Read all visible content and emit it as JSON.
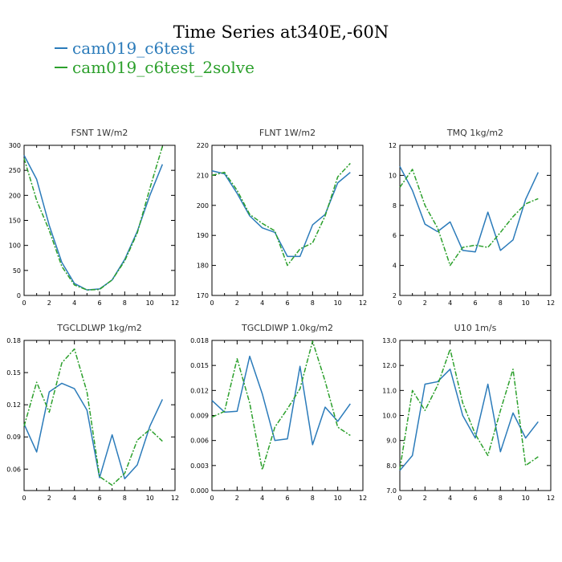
{
  "title": "Time Series at340E,-60N",
  "legend": [
    {
      "label": "cam019_c6test",
      "color": "#2b7bba"
    },
    {
      "label": "cam019_c6test_2solve",
      "color": "#2ca02c"
    }
  ],
  "chart_data": [
    {
      "type": "line",
      "title": "FSNT  1W/m2",
      "x": [
        0,
        1,
        2,
        3,
        4,
        5,
        6,
        7,
        8,
        9,
        10,
        11
      ],
      "xlim": [
        0,
        12
      ],
      "xticks": [
        0,
        2,
        4,
        6,
        8,
        10,
        12
      ],
      "ylim": [
        0,
        300
      ],
      "yticks": [
        "0",
        "50",
        "100",
        "150",
        "200",
        "250",
        "300"
      ],
      "series": [
        {
          "name": "cam019_c6test",
          "values": [
            280,
            232,
            140,
            66,
            24,
            11,
            13,
            31,
            72,
            128,
            200,
            262
          ]
        },
        {
          "name": "cam019_c6test_2solve",
          "values": [
            274,
            190,
            130,
            58,
            21,
            11,
            12,
            31,
            69,
            125,
            214,
            298
          ]
        }
      ]
    },
    {
      "type": "line",
      "title": "FLNT  1W/m2",
      "x": [
        0,
        1,
        2,
        3,
        4,
        5,
        6,
        7,
        8,
        9,
        10,
        11
      ],
      "xlim": [
        0,
        12
      ],
      "xticks": [
        0,
        2,
        4,
        6,
        8,
        10,
        12
      ],
      "ylim": [
        170,
        220
      ],
      "yticks": [
        "170",
        "180",
        "190",
        "200",
        "210",
        "220"
      ],
      "series": [
        {
          "name": "cam019_c6test",
          "values": [
            211.5,
            210.5,
            204,
            196.5,
            192.5,
            191,
            183,
            183,
            193.5,
            197,
            207.5,
            211
          ]
        },
        {
          "name": "cam019_c6test_2solve",
          "values": [
            210,
            211,
            205,
            197,
            194,
            191.5,
            180,
            185.5,
            187.5,
            196.5,
            209.5,
            214
          ]
        }
      ]
    },
    {
      "type": "line",
      "title": "TMQ  1kg/m2",
      "x": [
        0,
        1,
        2,
        3,
        4,
        5,
        6,
        7,
        8,
        9,
        10,
        11
      ],
      "xlim": [
        0,
        12
      ],
      "xticks": [
        0,
        2,
        4,
        6,
        8,
        10,
        12
      ],
      "ylim": [
        2,
        12
      ],
      "yticks": [
        "2",
        "4",
        "6",
        "8",
        "10",
        "12"
      ],
      "series": [
        {
          "name": "cam019_c6test",
          "values": [
            10.6,
            9,
            6.75,
            6.25,
            6.9,
            5,
            4.9,
            7.55,
            5,
            5.7,
            8.4,
            10.2
          ]
        },
        {
          "name": "cam019_c6test_2solve",
          "values": [
            9.2,
            10.4,
            8,
            6.5,
            4,
            5.2,
            5.35,
            5.2,
            6.2,
            7.25,
            8.1,
            8.45
          ]
        }
      ]
    },
    {
      "type": "line",
      "title": "TGCLDLWP  1kg/m2",
      "x": [
        0,
        1,
        2,
        3,
        4,
        5,
        6,
        7,
        8,
        9,
        10,
        11
      ],
      "xlim": [
        0,
        12
      ],
      "xticks": [
        0,
        2,
        4,
        6,
        8,
        10,
        12
      ],
      "ylim": [
        0.04,
        0.18
      ],
      "yticks": [
        "0.06",
        "0.09",
        "0.12",
        "0.15",
        "0.18"
      ],
      "series": [
        {
          "name": "cam019_c6test",
          "values": [
            0.102,
            0.076,
            0.132,
            0.14,
            0.135,
            0.115,
            0.052,
            0.092,
            0.051,
            0.064,
            0.1,
            0.125
          ]
        },
        {
          "name": "cam019_c6test_2solve",
          "values": [
            0.1,
            0.141,
            0.113,
            0.159,
            0.172,
            0.132,
            0.053,
            0.045,
            0.056,
            0.087,
            0.097,
            0.086
          ]
        }
      ]
    },
    {
      "type": "line",
      "title": "TGCLDIWP  1.0kg/m2",
      "x": [
        0,
        1,
        2,
        3,
        4,
        5,
        6,
        7,
        8,
        9,
        10,
        11
      ],
      "xlim": [
        0,
        12
      ],
      "xticks": [
        0,
        2,
        4,
        6,
        8,
        10,
        12
      ],
      "ylim": [
        0,
        0.018
      ],
      "yticks": [
        "0.000",
        "0.003",
        "0.006",
        "0.009",
        "0.012",
        "0.015",
        "0.018"
      ],
      "series": [
        {
          "name": "cam019_c6test",
          "values": [
            0.0108,
            0.0094,
            0.0095,
            0.0161,
            0.0116,
            0.006,
            0.0062,
            0.0149,
            0.0055,
            0.01,
            0.0083,
            0.0104
          ]
        },
        {
          "name": "cam019_c6test_2solve",
          "values": [
            0.0088,
            0.0095,
            0.0158,
            0.0105,
            0.0025,
            0.0076,
            0.0098,
            0.0122,
            0.0179,
            0.0131,
            0.0076,
            0.0066
          ]
        }
      ]
    },
    {
      "type": "line",
      "title": "U10  1m/s",
      "x": [
        0,
        1,
        2,
        3,
        4,
        5,
        6,
        7,
        8,
        9,
        10,
        11
      ],
      "xlim": [
        0,
        12
      ],
      "xticks": [
        0,
        2,
        4,
        6,
        8,
        10,
        12
      ],
      "ylim": [
        7,
        13
      ],
      "yticks": [
        "7.0",
        "8.0",
        "9.0",
        "10.0",
        "11.0",
        "12.0",
        "13.0"
      ],
      "series": [
        {
          "name": "cam019_c6test",
          "values": [
            7.8,
            8.4,
            11.25,
            11.35,
            11.85,
            10,
            9.1,
            11.25,
            8.55,
            10.1,
            9.1,
            9.75
          ]
        },
        {
          "name": "cam019_c6test_2solve",
          "values": [
            7.85,
            11,
            10.2,
            11.2,
            12.65,
            10.5,
            9.25,
            8.4,
            10.2,
            11.85,
            8,
            8.35
          ]
        }
      ]
    }
  ]
}
